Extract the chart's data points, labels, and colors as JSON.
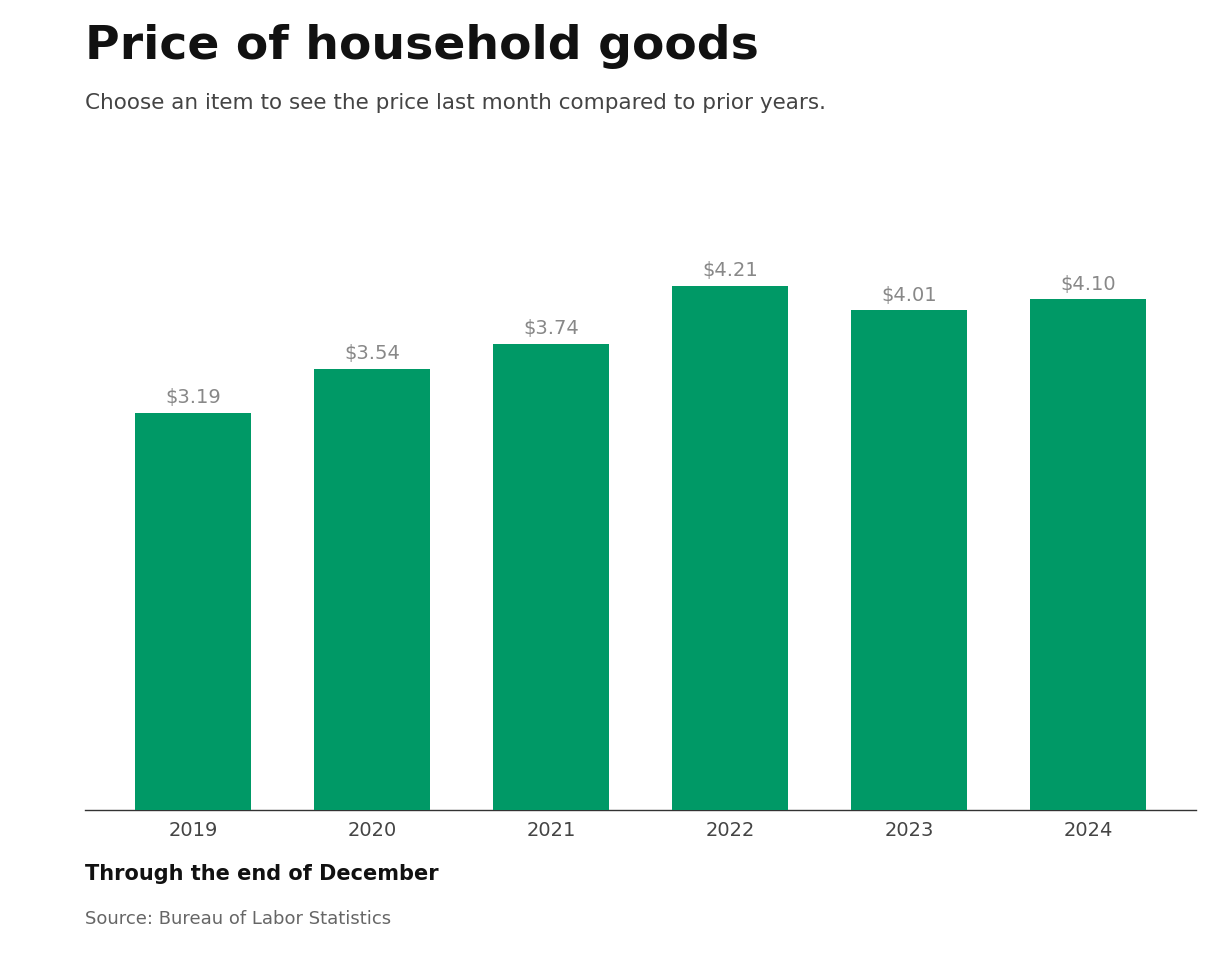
{
  "title": "Price of household goods",
  "subtitle": "Choose an item to see the price last month compared to prior years.",
  "categories": [
    "2019",
    "2020",
    "2021",
    "2022",
    "2023",
    "2024"
  ],
  "values": [
    3.19,
    3.54,
    3.74,
    4.21,
    4.01,
    4.1
  ],
  "labels": [
    "$3.19",
    "$3.54",
    "$3.74",
    "$4.21",
    "$4.01",
    "$4.10"
  ],
  "bar_color": "#009966",
  "label_color": "#888888",
  "title_color": "#111111",
  "subtitle_color": "#444444",
  "footer_label": "Through the end of December",
  "source_label": "Source: Bureau of Labor Statistics",
  "background_color": "#ffffff",
  "ylim": [
    0,
    4.7
  ],
  "bar_width": 0.65
}
